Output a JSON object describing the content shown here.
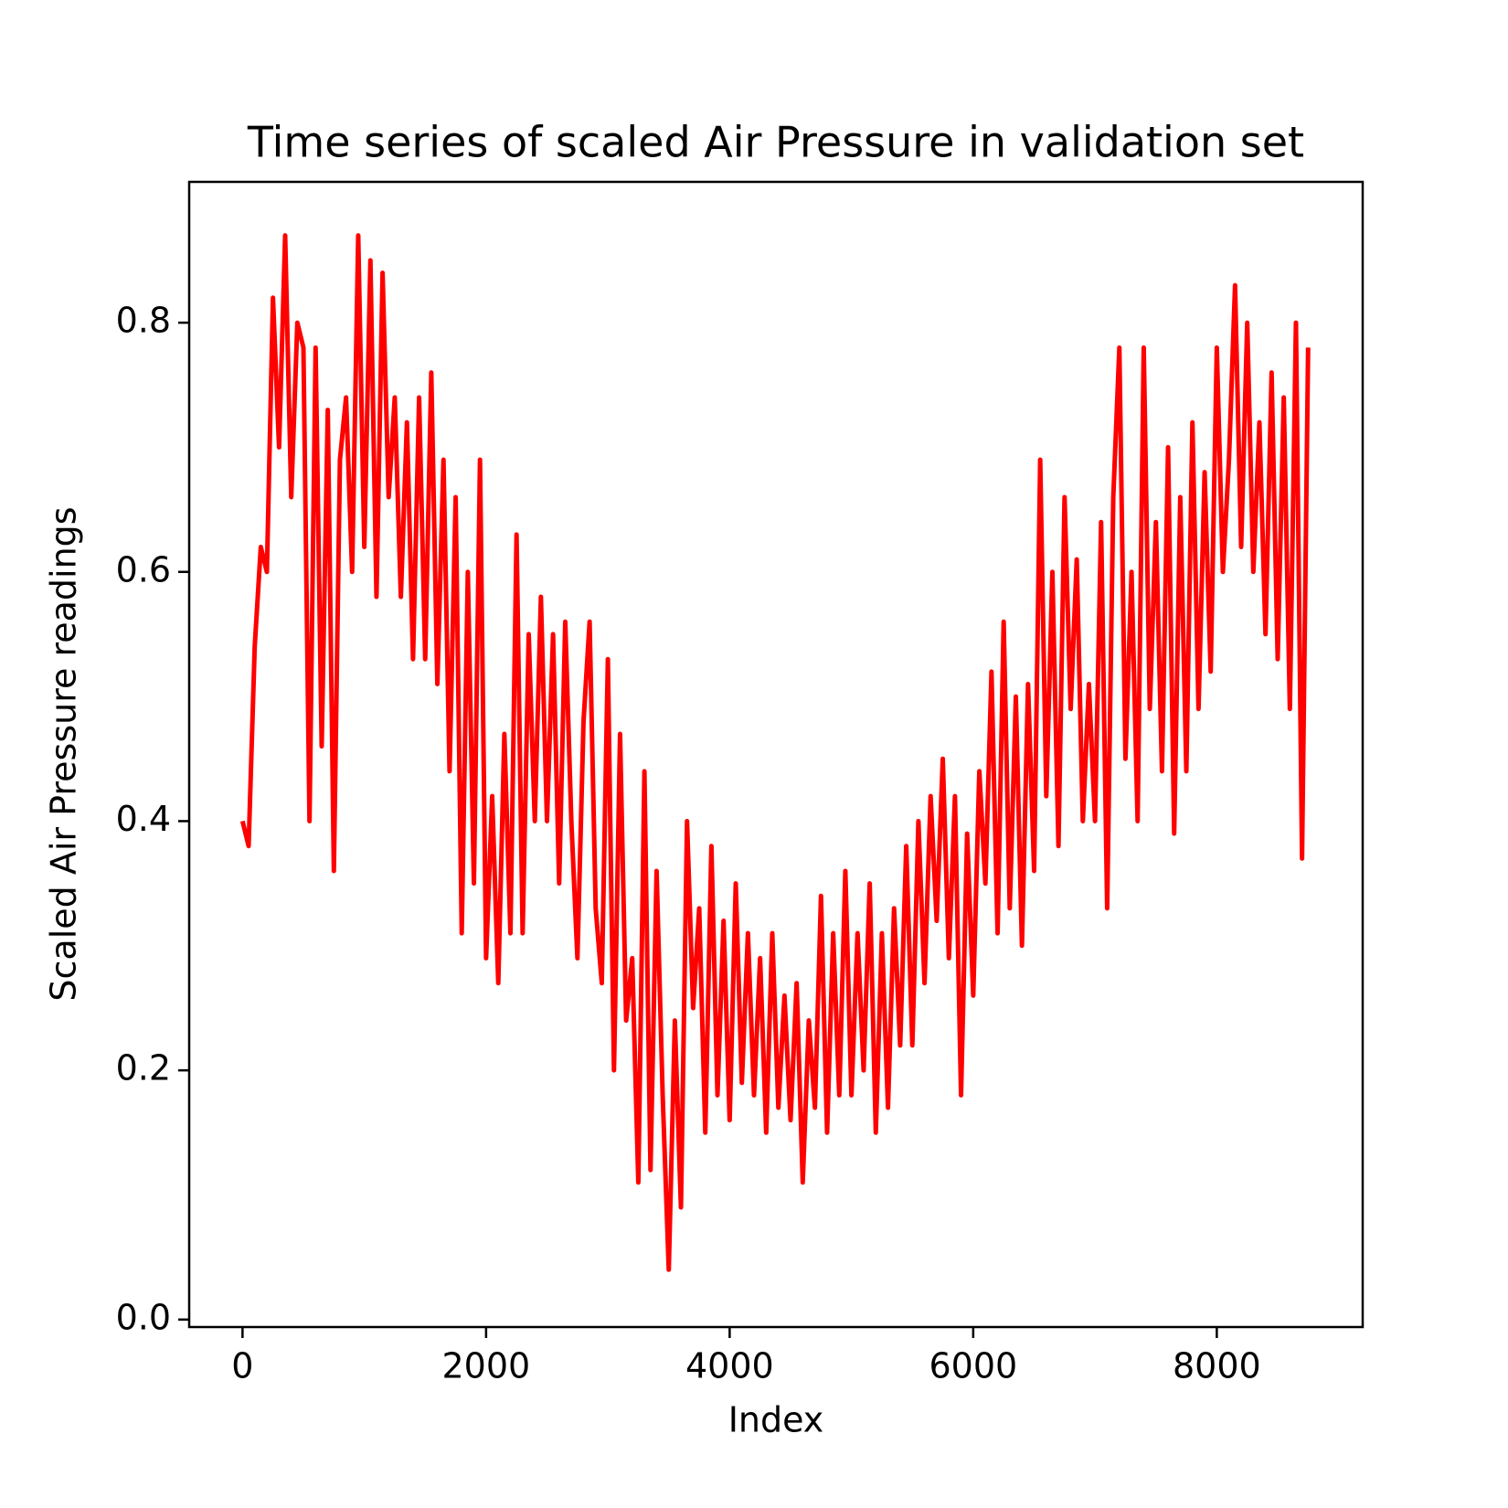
{
  "chart_data": {
    "type": "line",
    "title": "Time series of scaled Air Pressure in validation set",
    "xlabel": "Index",
    "ylabel": "Scaled Air Pressure readings",
    "color": "#ff0000",
    "grid": false,
    "xlim": [
      -438,
      9198
    ],
    "ylim": [
      -0.006,
      0.913
    ],
    "xticks": [
      0,
      2000,
      4000,
      6000,
      8000
    ],
    "yticks": [
      {
        "value": 0,
        "label": "0.0"
      },
      0.2,
      0.4,
      0.6,
      0.8
    ],
    "x": [
      0,
      50,
      100,
      150,
      200,
      250,
      300,
      350,
      400,
      450,
      500,
      550,
      600,
      650,
      700,
      750,
      800,
      850,
      900,
      950,
      1000,
      1050,
      1100,
      1150,
      1200,
      1250,
      1300,
      1350,
      1400,
      1450,
      1500,
      1550,
      1600,
      1650,
      1700,
      1750,
      1800,
      1850,
      1900,
      1950,
      2000,
      2050,
      2100,
      2150,
      2200,
      2250,
      2300,
      2350,
      2400,
      2450,
      2500,
      2550,
      2600,
      2650,
      2700,
      2750,
      2800,
      2850,
      2900,
      2950,
      3000,
      3050,
      3100,
      3150,
      3200,
      3250,
      3300,
      3350,
      3400,
      3450,
      3500,
      3550,
      3600,
      3650,
      3700,
      3750,
      3800,
      3850,
      3900,
      3950,
      4000,
      4050,
      4100,
      4150,
      4200,
      4250,
      4300,
      4350,
      4400,
      4450,
      4500,
      4550,
      4600,
      4650,
      4700,
      4750,
      4800,
      4850,
      4900,
      4950,
      5000,
      5050,
      5100,
      5150,
      5200,
      5250,
      5300,
      5350,
      5400,
      5450,
      5500,
      5550,
      5600,
      5650,
      5700,
      5750,
      5800,
      5850,
      5900,
      5950,
      6000,
      6050,
      6100,
      6150,
      6200,
      6250,
      6300,
      6350,
      6400,
      6450,
      6500,
      6550,
      6600,
      6650,
      6700,
      6750,
      6800,
      6850,
      6900,
      6950,
      7000,
      7050,
      7100,
      7150,
      7200,
      7250,
      7300,
      7350,
      7400,
      7450,
      7500,
      7550,
      7600,
      7650,
      7700,
      7750,
      7800,
      7850,
      7900,
      7950,
      8000,
      8050,
      8100,
      8150,
      8200,
      8250,
      8300,
      8350,
      8400,
      8450,
      8500,
      8550,
      8600,
      8650,
      8700,
      8750
    ],
    "values": [
      0.4,
      0.38,
      0.54,
      0.62,
      0.6,
      0.82,
      0.7,
      0.87,
      0.66,
      0.8,
      0.78,
      0.4,
      0.78,
      0.46,
      0.73,
      0.36,
      0.69,
      0.74,
      0.6,
      0.87,
      0.62,
      0.85,
      0.58,
      0.84,
      0.66,
      0.74,
      0.58,
      0.72,
      0.53,
      0.74,
      0.53,
      0.76,
      0.51,
      0.69,
      0.44,
      0.66,
      0.31,
      0.6,
      0.35,
      0.69,
      0.29,
      0.42,
      0.27,
      0.47,
      0.31,
      0.63,
      0.31,
      0.55,
      0.4,
      0.58,
      0.4,
      0.55,
      0.35,
      0.56,
      0.4,
      0.29,
      0.48,
      0.56,
      0.33,
      0.27,
      0.53,
      0.2,
      0.47,
      0.24,
      0.29,
      0.11,
      0.44,
      0.12,
      0.36,
      0.18,
      0.04,
      0.24,
      0.09,
      0.4,
      0.25,
      0.33,
      0.15,
      0.38,
      0.18,
      0.32,
      0.16,
      0.35,
      0.19,
      0.31,
      0.18,
      0.29,
      0.15,
      0.31,
      0.17,
      0.26,
      0.16,
      0.27,
      0.11,
      0.24,
      0.17,
      0.34,
      0.15,
      0.31,
      0.18,
      0.36,
      0.18,
      0.31,
      0.2,
      0.35,
      0.15,
      0.31,
      0.17,
      0.33,
      0.22,
      0.38,
      0.22,
      0.4,
      0.27,
      0.42,
      0.32,
      0.45,
      0.29,
      0.42,
      0.18,
      0.39,
      0.26,
      0.44,
      0.35,
      0.52,
      0.31,
      0.56,
      0.33,
      0.5,
      0.3,
      0.51,
      0.36,
      0.69,
      0.42,
      0.6,
      0.38,
      0.66,
      0.49,
      0.61,
      0.4,
      0.51,
      0.4,
      0.64,
      0.33,
      0.66,
      0.78,
      0.45,
      0.6,
      0.4,
      0.78,
      0.49,
      0.64,
      0.44,
      0.7,
      0.39,
      0.66,
      0.44,
      0.72,
      0.49,
      0.68,
      0.52,
      0.78,
      0.6,
      0.69,
      0.83,
      0.62,
      0.8,
      0.6,
      0.72,
      0.55,
      0.76,
      0.53,
      0.74,
      0.49,
      0.8,
      0.37,
      0.78
    ]
  }
}
